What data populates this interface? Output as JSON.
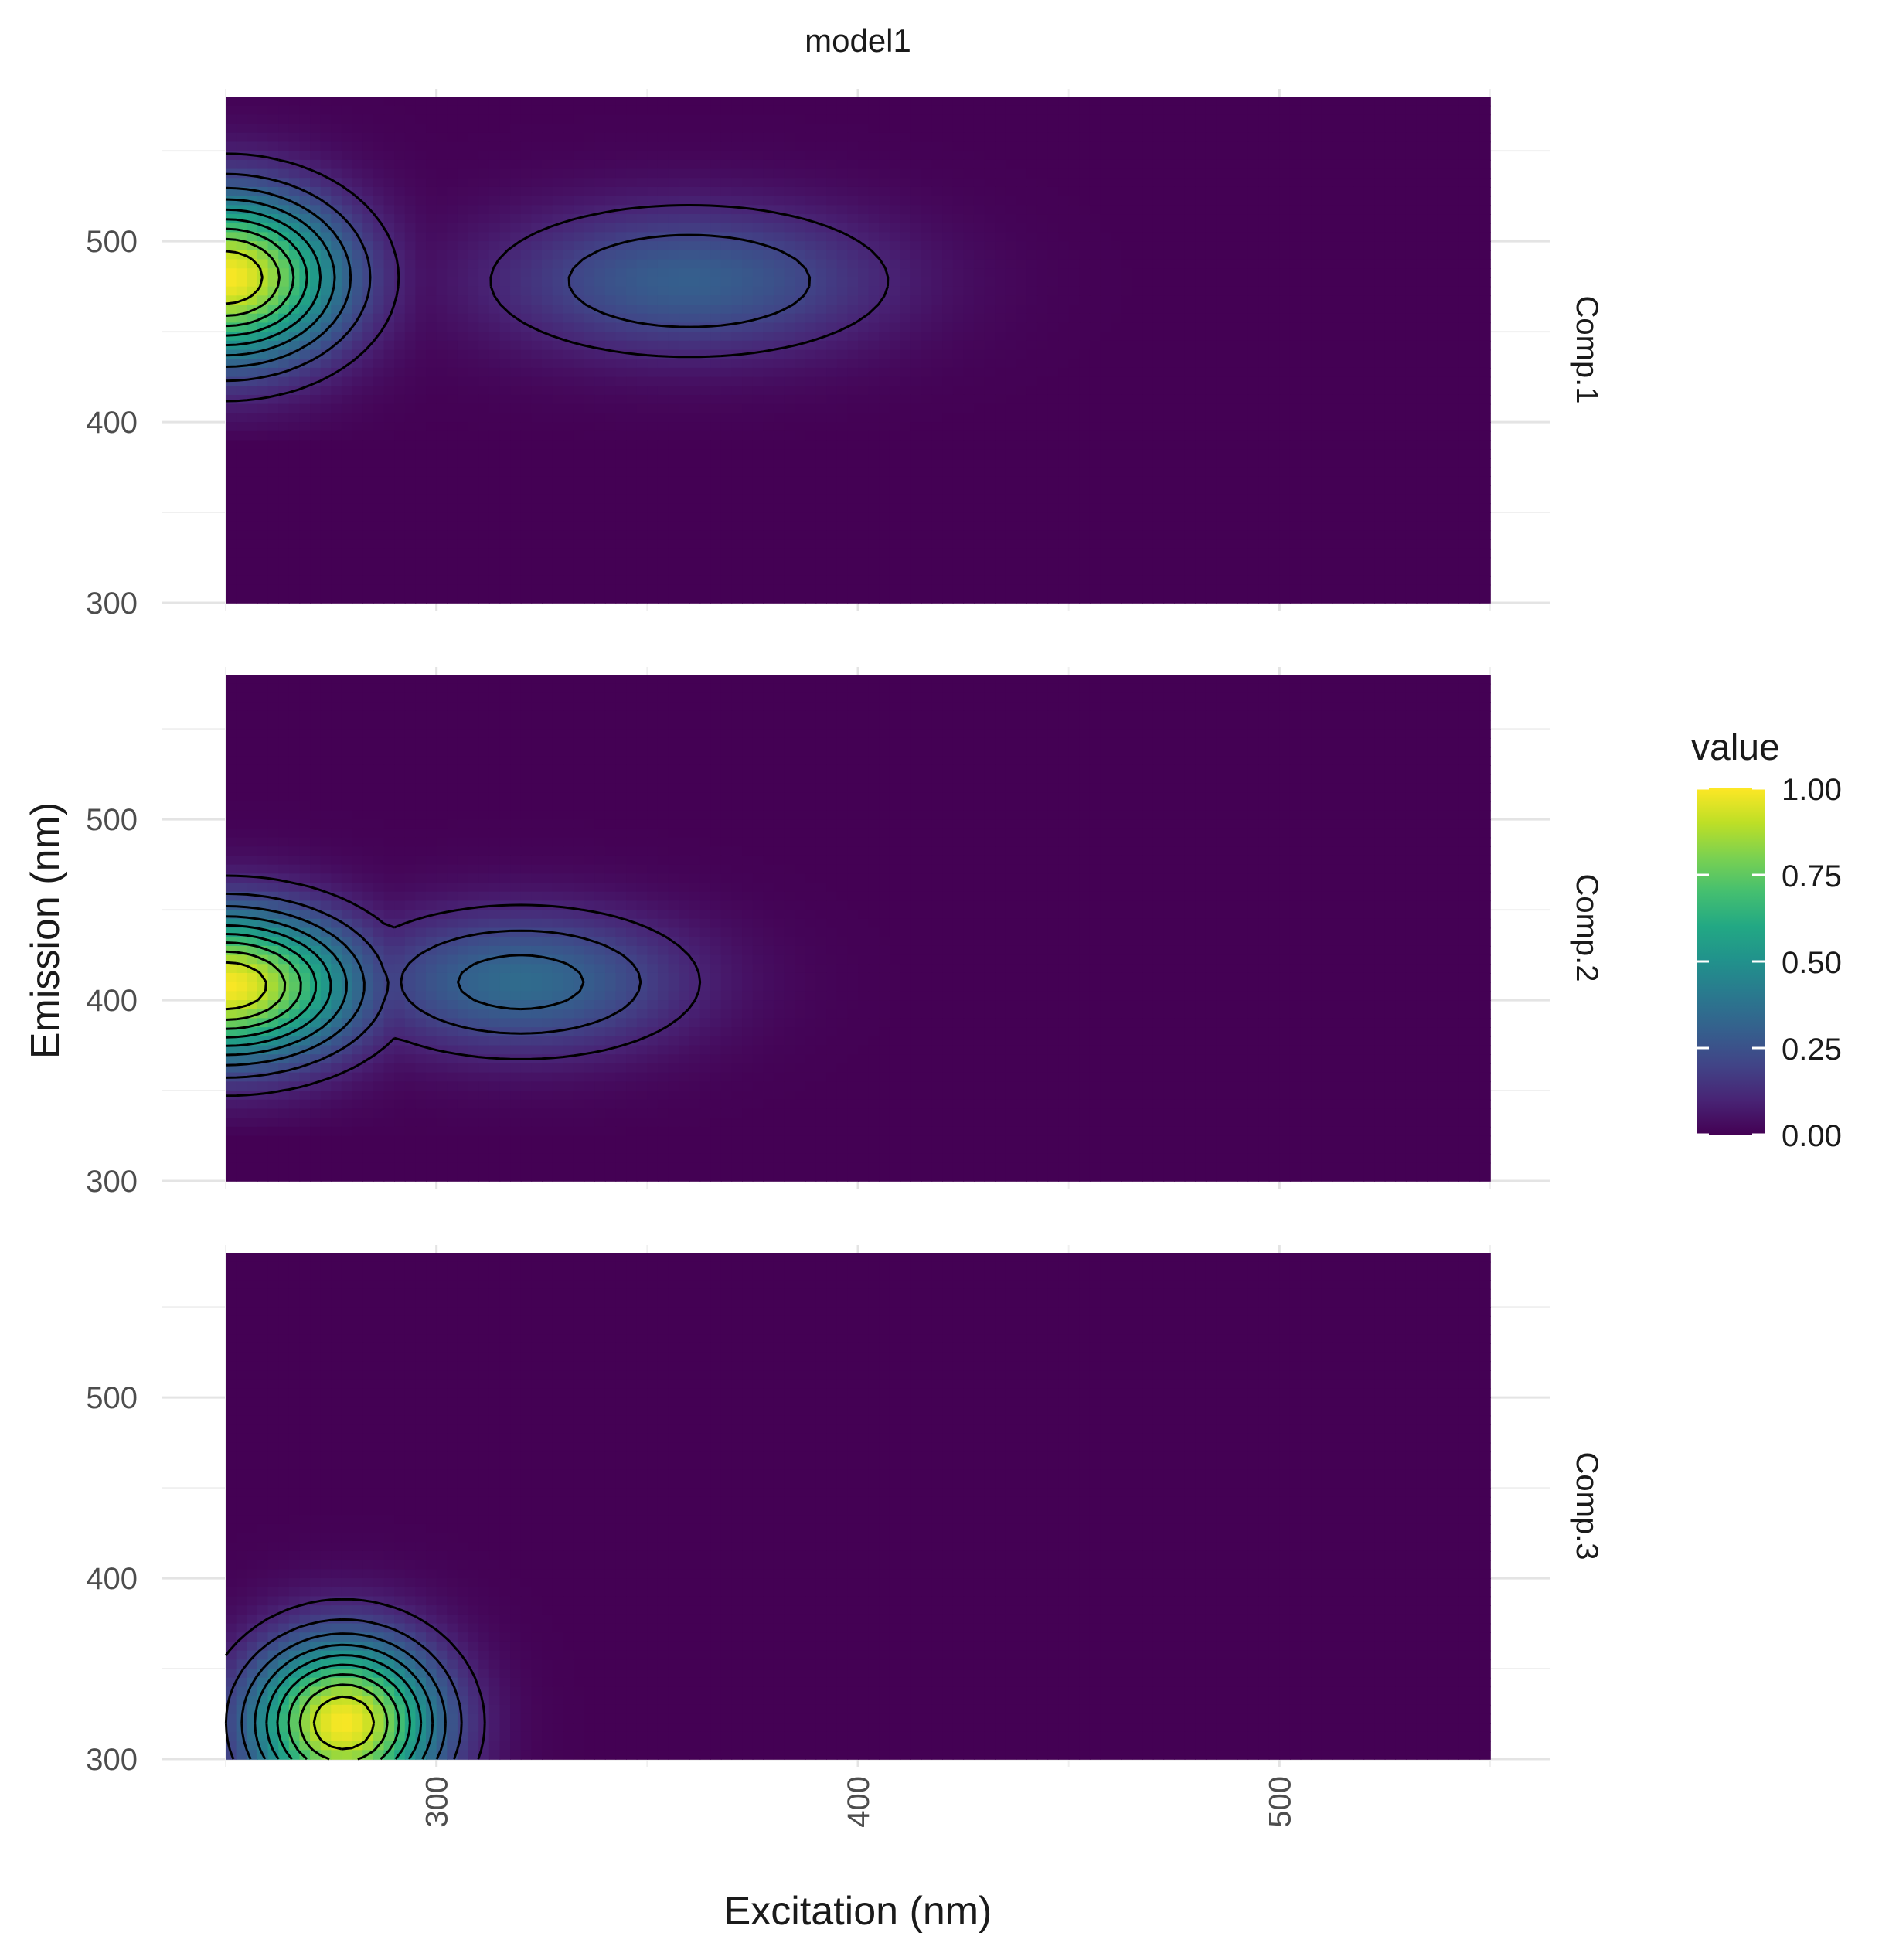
{
  "chart_data": {
    "type": "heatmap",
    "title": "model1",
    "xlabel": "Excitation (nm)",
    "ylabel": "Emission (nm)",
    "xlim": [
      250,
      550
    ],
    "ylim": [
      300,
      580
    ],
    "x_ticks": [
      "300",
      "400",
      "500"
    ],
    "y_ticks": [
      "300",
      "400",
      "500"
    ],
    "grid": true,
    "legend": {
      "title": "value",
      "position": "right",
      "ticks": [
        "1.00",
        "0.75",
        "0.50",
        "0.25",
        "0.00"
      ],
      "range": [
        0,
        1
      ]
    },
    "colorscale": "viridis",
    "contour_levels": [
      0.1,
      0.2,
      0.3,
      0.4,
      0.5,
      0.6,
      0.7,
      0.8,
      0.9
    ],
    "panels": [
      {
        "name": "Comp.1",
        "peaks": [
          {
            "ex": 250,
            "em": 480,
            "ex_width": 27,
            "em_width": 45,
            "amplitude": 1.0
          },
          {
            "ex": 360,
            "em": 478,
            "ex_width": 45,
            "em_width": 40,
            "amplitude": 0.3
          }
        ],
        "em_cutoff": 395
      },
      {
        "name": "Comp.2",
        "peaks": [
          {
            "ex": 250,
            "em": 408,
            "ex_width": 30,
            "em_width": 40,
            "amplitude": 1.0
          },
          {
            "ex": 320,
            "em": 410,
            "ex_width": 38,
            "em_width": 38,
            "amplitude": 0.35
          }
        ],
        "em_cutoff": 330
      },
      {
        "name": "Comp.3",
        "peaks": [
          {
            "ex": 278,
            "em": 320,
            "ex_width": 22,
            "em_width": 45,
            "amplitude": 1.0
          }
        ],
        "em_cutoff": 300
      }
    ]
  }
}
